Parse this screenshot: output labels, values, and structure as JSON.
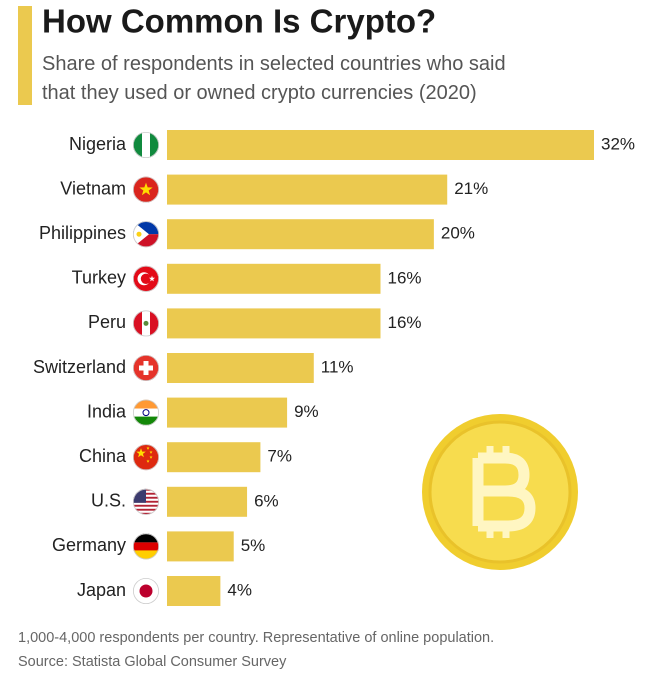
{
  "chart_data": {
    "type": "bar",
    "orientation": "horizontal",
    "title": "How Common Is Crypto?",
    "subtitle": [
      "Share of respondents in selected countries who said",
      "that they used or owned crypto currencies (2020)"
    ],
    "categories": [
      "Nigeria",
      "Vietnam",
      "Philippines",
      "Turkey",
      "Peru",
      "Switzerland",
      "India",
      "China",
      "U.S.",
      "Germany",
      "Japan"
    ],
    "values": [
      32,
      21,
      20,
      16,
      16,
      11,
      9,
      7,
      6,
      5,
      4
    ],
    "value_labels": [
      "32%",
      "21%",
      "20%",
      "16%",
      "16%",
      "11%",
      "9%",
      "7%",
      "6%",
      "5%",
      "4%"
    ],
    "color": "#ebc94f",
    "notes": [
      "1,000-4,000 respondents per country. Representative of online population.",
      "Source: Statista Global Consumer Survey"
    ]
  }
}
